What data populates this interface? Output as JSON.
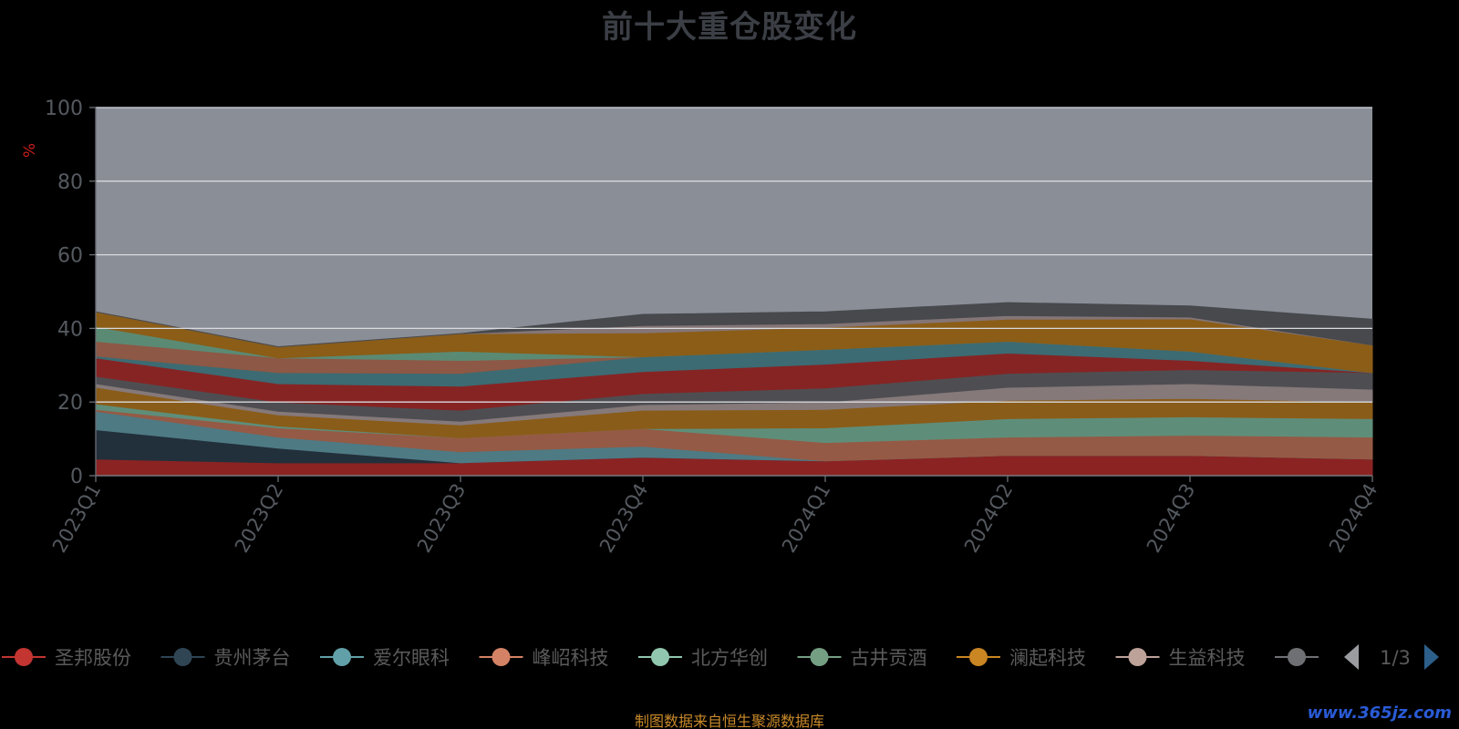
{
  "chart_data": {
    "type": "area",
    "stacked": true,
    "title": "前十大重仓股变化",
    "ylabel": "%",
    "xlabel": "",
    "ylim": [
      0,
      100
    ],
    "yticks": [
      "0",
      "20",
      "40",
      "60",
      "80",
      "100"
    ],
    "grid": true,
    "categories": [
      "2023Q1",
      "2023Q2",
      "2023Q3",
      "2023Q4",
      "2024Q1",
      "2024Q2",
      "2024Q3",
      "2024Q4"
    ],
    "layers": [
      {
        "color": "#8b2323",
        "values": [
          4.5,
          3.5,
          3.5,
          5.0,
          4.0,
          5.5,
          5.5,
          4.5
        ]
      },
      {
        "color": "#22303b",
        "values": [
          8.0,
          4.0,
          0.0,
          0.0,
          0.0,
          0.0,
          0.0,
          0.0
        ]
      },
      {
        "color": "#4e7a84",
        "values": [
          5.0,
          3.0,
          3.0,
          3.0,
          0.0,
          0.0,
          0.0,
          0.0
        ]
      },
      {
        "color": "#955a45",
        "values": [
          0.5,
          2.5,
          3.8,
          4.8,
          5.0,
          5.0,
          5.5,
          6.0
        ]
      },
      {
        "color": "#5e8e7a",
        "values": [
          1.5,
          0.5,
          0.0,
          0.0,
          4.0,
          5.0,
          5.0,
          5.0
        ]
      },
      {
        "color": "#8a5c19",
        "values": [
          4.5,
          3.0,
          3.5,
          5.0,
          5.0,
          5.0,
          5.0,
          4.5
        ]
      },
      {
        "color": "#85797a",
        "values": [
          1.0,
          1.0,
          1.0,
          1.5,
          2.0,
          3.5,
          4.0,
          3.5
        ]
      },
      {
        "color": "#4e4e52",
        "values": [
          2.0,
          2.5,
          3.0,
          3.0,
          3.8,
          3.8,
          3.8,
          4.5
        ]
      },
      {
        "color": "#862424",
        "values": [
          5.0,
          5.0,
          6.5,
          6.0,
          6.5,
          5.5,
          2.5,
          0.0
        ]
      },
      {
        "color": "#3c6b73",
        "values": [
          0.5,
          3.0,
          3.5,
          4.0,
          4.0,
          3.2,
          2.5,
          0.0
        ]
      },
      {
        "color": "#8d5845",
        "values": [
          4.0,
          4.0,
          3.5,
          0.0,
          0.0,
          0.0,
          0.0,
          0.0
        ]
      },
      {
        "color": "#5b8a74",
        "values": [
          4.0,
          0.0,
          2.5,
          0.0,
          0.0,
          0.0,
          0.0,
          0.0
        ]
      },
      {
        "color": "#8b5d17",
        "values": [
          4.0,
          3.0,
          4.8,
          6.5,
          6.0,
          6.0,
          8.8,
          7.5
        ]
      },
      {
        "color": "#847576",
        "values": [
          0.0,
          0.0,
          0.0,
          2.0,
          1.0,
          1.0,
          0.5,
          0.0
        ]
      },
      {
        "color": "#47494d",
        "values": [
          0.0,
          0.0,
          0.0,
          3.0,
          3.2,
          3.5,
          3.0,
          7.0
        ]
      }
    ]
  },
  "legend": {
    "items": [
      {
        "name": "圣邦股份",
        "color": "#c23531"
      },
      {
        "name": "贵州茅台",
        "color": "#2f4554"
      },
      {
        "name": "爱尔眼科",
        "color": "#61a0a8"
      },
      {
        "name": "峰岹科技",
        "color": "#d48265"
      },
      {
        "name": "北方华创",
        "color": "#91c7ae"
      },
      {
        "name": "古井贡酒",
        "color": "#749f83"
      },
      {
        "name": "澜起科技",
        "color": "#ca8622"
      },
      {
        "name": "生益科技",
        "color": "#bda29a"
      },
      {
        "name": "",
        "color": "#6e7074"
      }
    ],
    "page": "1/3"
  },
  "source_note": "制图数据来自恒生聚源数据库",
  "watermark": "www.365jz.com"
}
